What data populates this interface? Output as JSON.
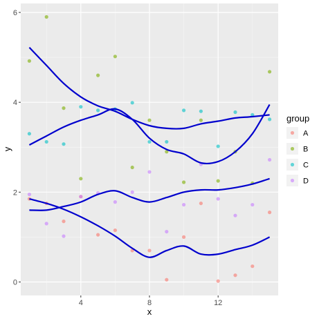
{
  "chart_data": {
    "type": "scatter",
    "title": "",
    "xlabel": "x",
    "ylabel": "y",
    "xlim": [
      0.5,
      15.5
    ],
    "ylim": [
      -0.3,
      6.2
    ],
    "xticks": [
      4,
      8,
      12
    ],
    "yticks": [
      0,
      2,
      4,
      6
    ],
    "x_tick_labels": [
      "4",
      "8",
      "12"
    ],
    "y_tick_labels": [
      "0",
      "2",
      "4",
      "6"
    ],
    "grid": true,
    "legend": {
      "title": "group",
      "position": "right"
    },
    "series": [
      {
        "name": "A",
        "color": "#F8766D",
        "points": [
          [
            1,
            1.85
          ],
          [
            2,
            1.75
          ],
          [
            3,
            1.35
          ],
          [
            4,
            1.9
          ],
          [
            5,
            1.05
          ],
          [
            6,
            1.15
          ],
          [
            7,
            0.7
          ],
          [
            8,
            0.7
          ],
          [
            9,
            0.05
          ],
          [
            10,
            1.0
          ],
          [
            11,
            1.75
          ],
          [
            12,
            0.02
          ],
          [
            13,
            0.15
          ],
          [
            14,
            0.35
          ],
          [
            15,
            1.55
          ]
        ]
      },
      {
        "name": "B",
        "color": "#7CAE00",
        "points": [
          [
            1,
            4.92
          ],
          [
            2,
            5.9
          ],
          [
            3,
            3.87
          ],
          [
            4,
            2.3
          ],
          [
            5,
            4.6
          ],
          [
            6,
            5.02
          ],
          [
            7,
            2.55
          ],
          [
            8,
            3.6
          ],
          [
            9,
            2.9
          ],
          [
            10,
            2.22
          ],
          [
            11,
            3.6
          ],
          [
            12,
            2.25
          ],
          [
            13,
            2.9
          ],
          [
            14,
            2.2
          ],
          [
            15,
            4.68
          ]
        ]
      },
      {
        "name": "C",
        "color": "#00BFC4",
        "points": [
          [
            1,
            3.3
          ],
          [
            2,
            3.12
          ],
          [
            3,
            3.07
          ],
          [
            4,
            3.9
          ],
          [
            5,
            3.82
          ],
          [
            6,
            3.85
          ],
          [
            7,
            3.99
          ],
          [
            8,
            3.12
          ],
          [
            9,
            3.12
          ],
          [
            10,
            3.82
          ],
          [
            11,
            3.8
          ],
          [
            12,
            3.02
          ],
          [
            13,
            3.78
          ],
          [
            14,
            3.72
          ],
          [
            15,
            3.62
          ]
        ]
      },
      {
        "name": "D",
        "color": "#C77CFF",
        "points": [
          [
            1,
            1.95
          ],
          [
            2,
            1.3
          ],
          [
            3,
            1.02
          ],
          [
            4,
            1.9
          ],
          [
            5,
            1.98
          ],
          [
            6,
            1.78
          ],
          [
            7,
            2.0
          ],
          [
            8,
            2.45
          ],
          [
            9,
            1.12
          ],
          [
            10,
            1.72
          ],
          [
            11,
            2.62
          ],
          [
            12,
            1.85
          ],
          [
            13,
            1.48
          ],
          [
            14,
            1.72
          ],
          [
            15,
            2.72
          ]
        ]
      }
    ],
    "smooth_lines": [
      {
        "color": "#0000CD",
        "points": [
          [
            1,
            5.22
          ],
          [
            2,
            4.82
          ],
          [
            3,
            4.42
          ],
          [
            4,
            4.12
          ],
          [
            5,
            3.92
          ],
          [
            6,
            3.8
          ],
          [
            7,
            3.62
          ],
          [
            8,
            3.48
          ],
          [
            9,
            3.42
          ],
          [
            10,
            3.42
          ],
          [
            11,
            3.52
          ],
          [
            12,
            3.58
          ],
          [
            13,
            3.65
          ],
          [
            14,
            3.68
          ],
          [
            15,
            3.72
          ]
        ]
      },
      {
        "color": "#0000CD",
        "points": [
          [
            1,
            3.05
          ],
          [
            2,
            3.25
          ],
          [
            3,
            3.45
          ],
          [
            4,
            3.6
          ],
          [
            5,
            3.72
          ],
          [
            6,
            3.85
          ],
          [
            7,
            3.62
          ],
          [
            8,
            3.2
          ],
          [
            9,
            2.95
          ],
          [
            10,
            2.85
          ],
          [
            11,
            2.65
          ],
          [
            12,
            2.68
          ],
          [
            13,
            2.9
          ],
          [
            14,
            3.3
          ],
          [
            15,
            3.95
          ]
        ]
      },
      {
        "color": "#0000CD",
        "points": [
          [
            1,
            1.6
          ],
          [
            2,
            1.6
          ],
          [
            3,
            1.68
          ],
          [
            4,
            1.78
          ],
          [
            5,
            1.95
          ],
          [
            6,
            2.03
          ],
          [
            7,
            1.88
          ],
          [
            8,
            1.78
          ],
          [
            9,
            1.88
          ],
          [
            10,
            2.0
          ],
          [
            11,
            2.05
          ],
          [
            12,
            2.05
          ],
          [
            13,
            2.1
          ],
          [
            14,
            2.18
          ],
          [
            15,
            2.3
          ]
        ]
      },
      {
        "color": "#0000CD",
        "points": [
          [
            1,
            1.85
          ],
          [
            2,
            1.75
          ],
          [
            3,
            1.62
          ],
          [
            4,
            1.45
          ],
          [
            5,
            1.25
          ],
          [
            6,
            1.02
          ],
          [
            7,
            0.75
          ],
          [
            8,
            0.55
          ],
          [
            9,
            0.7
          ],
          [
            10,
            0.8
          ],
          [
            11,
            0.62
          ],
          [
            12,
            0.62
          ],
          [
            13,
            0.72
          ],
          [
            14,
            0.82
          ],
          [
            15,
            1.0
          ]
        ]
      }
    ]
  }
}
